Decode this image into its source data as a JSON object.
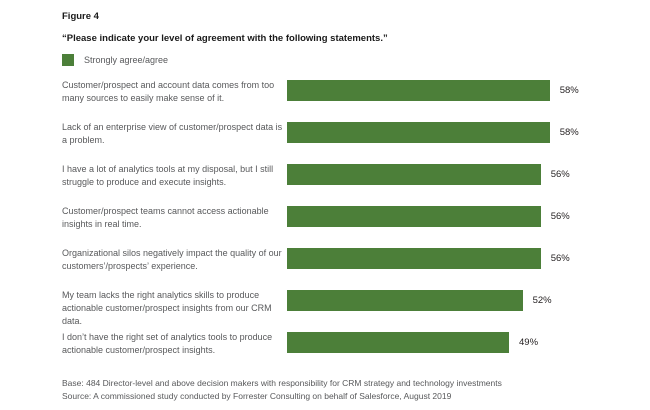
{
  "figure_label": "Figure 4",
  "chart_data": {
    "type": "bar",
    "orientation": "horizontal",
    "title": "“Please indicate your level of agreement with the following statements.”",
    "legend": [
      "Strongly agree/agree"
    ],
    "legend_position": "top-left",
    "grid": false,
    "unit": "percent",
    "xlim": [
      0,
      60
    ],
    "bar_color": "#4c7f39",
    "categories": [
      "Customer/prospect and account data comes from too many sources to easily make sense of it.",
      "Lack of an enterprise view of customer/prospect data is a problem.",
      "I have a lot of analytics tools at my disposal, but I still struggle to produce and execute insights.",
      "Customer/prospect teams cannot access actionable insights in real time.",
      "Organizational silos negatively impact the quality of our customers’/prospects’ experience.",
      "My team lacks the right analytics skills to produce actionable customer/prospect insights from our CRM data.",
      "I don’t have the right set of analytics tools to produce actionable customer/prospect insights."
    ],
    "values": [
      58,
      58,
      56,
      56,
      56,
      52,
      49
    ],
    "value_labels": [
      "58%",
      "58%",
      "56%",
      "56%",
      "56%",
      "52%",
      "49%"
    ]
  },
  "footer": {
    "base": "Base: 484 Director-level and above decision makers with responsibility for CRM strategy and technology investments",
    "source": "Source: A commissioned study conducted by Forrester Consulting on behalf of Salesforce, August 2019"
  }
}
